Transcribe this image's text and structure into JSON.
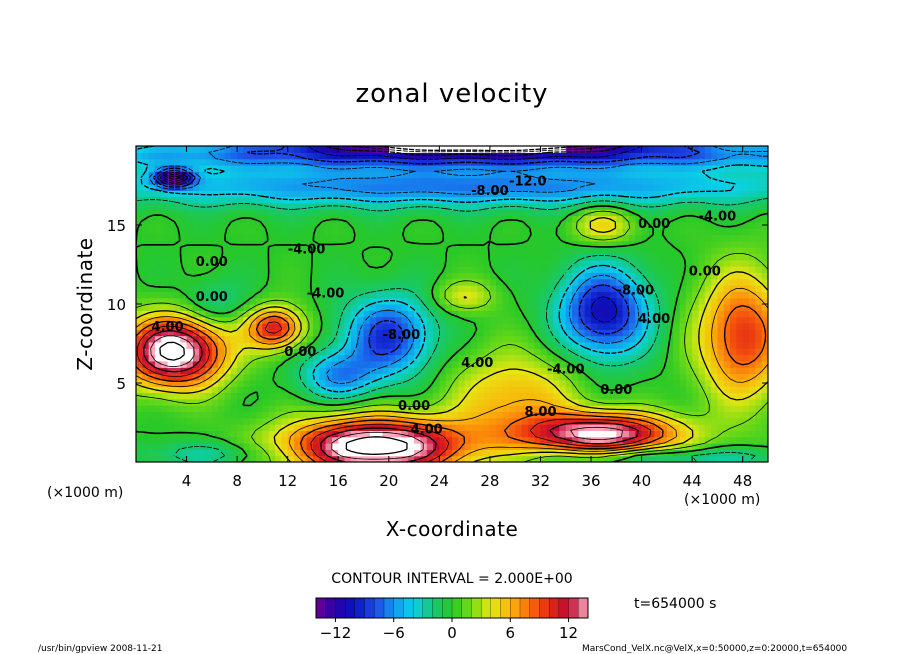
{
  "chart_data": {
    "type": "heatmap",
    "title": "zonal velocity",
    "xlabel": "X-coordinate",
    "ylabel": "Z-coordinate",
    "x_unit": "(×1000 m)",
    "y_unit": "(×1000 m)",
    "xlim": [
      0,
      50
    ],
    "ylim": [
      0,
      20
    ],
    "x_ticks": [
      4,
      8,
      12,
      16,
      20,
      24,
      28,
      32,
      36,
      40,
      44,
      48
    ],
    "y_ticks": [
      5,
      10,
      15
    ],
    "contour_interval_label": "CONTOUR INTERVAL = 2.000E+00",
    "time_label": "t=654000 s",
    "colorbar": {
      "range": [
        -14,
        14
      ],
      "ticks": [
        -12,
        -6,
        0,
        6,
        12
      ],
      "tick_labels": [
        "−12",
        "−6",
        "0",
        "6",
        "12"
      ]
    },
    "contour_labels": [
      {
        "text": "-12.0",
        "x": 31,
        "z": 17.5
      },
      {
        "text": "-8.00",
        "x": 28,
        "z": 16.9
      },
      {
        "text": "-4.00",
        "x": 46,
        "z": 15.3
      },
      {
        "text": "0.00",
        "x": 41,
        "z": 14.8
      },
      {
        "text": "-4.00",
        "x": 13.5,
        "z": 13.2
      },
      {
        "text": "0.00",
        "x": 6,
        "z": 12.4
      },
      {
        "text": "0.00",
        "x": 45,
        "z": 11.8
      },
      {
        "text": "-4.00",
        "x": 15,
        "z": 10.4
      },
      {
        "text": "0.00",
        "x": 6,
        "z": 10.2
      },
      {
        "text": "-8.00",
        "x": 39.5,
        "z": 10.6
      },
      {
        "text": "4.00",
        "x": 41,
        "z": 8.8
      },
      {
        "text": "4.00",
        "x": 2.5,
        "z": 8.3
      },
      {
        "text": "-8.00",
        "x": 21,
        "z": 7.8
      },
      {
        "text": "0.00",
        "x": 13,
        "z": 6.7
      },
      {
        "text": "4.00",
        "x": 27,
        "z": 6.0
      },
      {
        "text": "-4.00",
        "x": 34,
        "z": 5.6
      },
      {
        "text": "0.00",
        "x": 38,
        "z": 4.3
      },
      {
        "text": "0.00",
        "x": 22,
        "z": 3.3
      },
      {
        "text": "8.00",
        "x": 32,
        "z": 2.9
      },
      {
        "text": "4.00",
        "x": 23,
        "z": 1.8
      }
    ],
    "grid": false
  },
  "footer": {
    "left": "/usr/bin/gpview   2008-11-21",
    "right": "MarsCond_VelX.nc@VelX,x=0:50000,z=0:20000,t=654000"
  }
}
